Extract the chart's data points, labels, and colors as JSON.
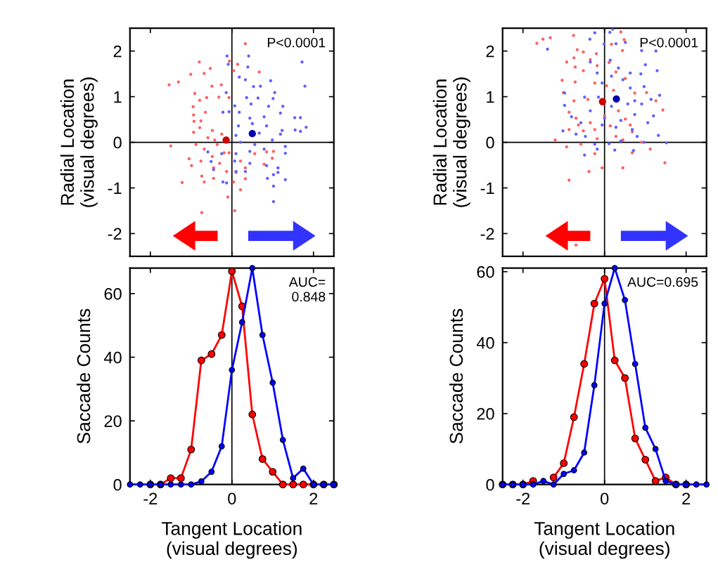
{
  "chart_data": [
    {
      "type": "scatter",
      "ylabel": "Radial Location\n(visual degrees)",
      "xlim": [
        -2.5,
        2.5
      ],
      "ylim": [
        -2.5,
        2.5
      ],
      "xticks": [
        {
          "value": -2,
          "label": null
        },
        {
          "value": 0,
          "label": null
        },
        {
          "value": 2,
          "label": null
        }
      ],
      "yticks": [
        -2,
        -1,
        0,
        1,
        2
      ],
      "tick_labels": "y",
      "annotations": [
        "P<0.0001"
      ],
      "ref_lines": [
        {
          "axis": "x",
          "value": 0,
          "color": "#000000"
        },
        {
          "axis": "y",
          "value": 0,
          "color": "#000000"
        }
      ],
      "series": [
        {
          "color": "#ff6060",
          "x": [
            0.33,
            -0.8,
            -1.31,
            -1.54,
            -1.01,
            -0.68,
            -0.53,
            -0.49,
            -0.91,
            -0.62,
            -0.32,
            -0.26,
            -0.07,
            -0.06,
            0.04,
            0.14,
            0.67,
            -0.79,
            -0.95,
            -0.65,
            -0.94,
            -0.76,
            -0.93,
            -0.79,
            -0.94,
            -0.48,
            -0.25,
            -0.59,
            -1.5,
            -0.88,
            -0.68,
            -0.36,
            -1.05,
            -0.99,
            -0.76,
            -0.48,
            -0.19,
            -0.3,
            -0.45,
            -0.13,
            0.21,
            0.56,
            0.85,
            1.02,
            0.99,
            0.79,
            0.33,
            0.1,
            0.33,
            0.21,
            0.04,
            -0.1,
            0.07,
            -0.74,
            -1.22,
            -0.68,
            -0.45,
            -0.74,
            -0.07,
            -0.42,
            -0.19
          ],
          "values": [
            2.16,
            1.76,
            1.32,
            1.26,
            1.49,
            1.51,
            1.62,
            1.23,
            1.07,
            0.98,
            0.99,
            1.26,
            0.98,
            1.78,
            1.57,
            1.71,
            1.54,
            0.92,
            0.78,
            0.66,
            0.6,
            0.47,
            0.46,
            0.32,
            0.22,
            0.26,
            0.18,
            0.1,
            -0.08,
            -0.05,
            -0.15,
            -0.05,
            -0.36,
            -0.51,
            -0.41,
            -0.31,
            -0.23,
            -0.46,
            -0.56,
            -0.64,
            -0.41,
            -0.25,
            -0.21,
            -0.2,
            -0.35,
            -0.48,
            -0.56,
            -0.66,
            -0.8,
            -1.04,
            -0.87,
            -1.2,
            -1.5,
            -1.54,
            -0.88,
            -0.87,
            -0.79,
            -0.74,
            -0.23,
            0.05,
            0.05
          ]
        },
        {
          "color": "#6060ff",
          "x": [
            -0.12,
            -0.09,
            0.41,
            0.39,
            0.33,
            0.18,
            1.72,
            1.79,
            0.95,
            0.7,
            0.53,
            1.05,
            0.36,
            0.64,
            1.01,
            1.25,
            0.9,
            0.47,
            0.07,
            -0.07,
            -0.22,
            -0.14,
            0.18,
            0.44,
            0.79,
            1.19,
            1.54,
            1.68,
            1.82,
            1.55,
            1.68,
            1.23,
            0.85,
            0.5,
            0.16,
            0.1,
            0.67,
            1.19,
            0.99,
            0.56,
            0.21,
            1.31,
            0.79,
            0.44,
            0.1,
            1.31,
            -0.59,
            -0.25,
            0.07,
            0.44,
            0.85,
            1.13,
            1.13,
            0.33,
            -0.45,
            -0.51,
            1.02,
            0.87,
            1.31,
            1.02,
            1.02,
            -0.22,
            -0.13,
            0.1
          ],
          "values": [
            1.89,
            1.71,
            1.89,
            1.65,
            1.37,
            1.43,
            1.76,
            1.23,
            1.35,
            1.23,
            1.22,
            1.09,
            0.98,
            0.97,
            0.96,
            0.79,
            0.79,
            0.84,
            0.8,
            0.67,
            0.66,
            1.09,
            0.66,
            0.53,
            0.56,
            0.64,
            0.54,
            0.54,
            0.33,
            0.27,
            0.24,
            0.26,
            0.36,
            0.41,
            0.36,
            0.15,
            0.2,
            0.18,
            0.05,
            -0.05,
            0.0,
            -0.09,
            -0.15,
            -0.2,
            -0.25,
            -0.24,
            -0.21,
            -0.25,
            -0.41,
            -0.46,
            -0.51,
            -0.56,
            -0.66,
            -0.64,
            -0.6,
            -0.42,
            -0.71,
            -0.79,
            -0.82,
            -0.96,
            -1.3,
            -0.87,
            -0.89,
            -0.64
          ]
        },
        {
          "type": "bubble",
          "color": "#cc0000",
          "x": [
            -0.14
          ],
          "values": [
            0.05
          ],
          "sizes": [
            1
          ]
        },
        {
          "type": "bubble",
          "color": "#0000b0",
          "x": [
            0.5
          ],
          "values": [
            0.19
          ],
          "sizes": [
            1
          ]
        }
      ]
    },
    {
      "type": "scatter",
      "ylabel": "Radial Location\n(visual degrees)",
      "xlim": [
        -2.5,
        2.5
      ],
      "ylim": [
        -2.5,
        2.5
      ],
      "xticks": [
        {
          "value": -2,
          "label": null
        },
        {
          "value": 0,
          "label": null
        },
        {
          "value": 2,
          "label": null
        }
      ],
      "yticks": [
        -2,
        -1,
        0,
        1,
        2
      ],
      "tick_labels": "y",
      "annotations": [
        "P<0.0001"
      ],
      "ref_lines": [
        {
          "axis": "x",
          "value": 0,
          "color": "#000000"
        },
        {
          "axis": "y",
          "value": 0,
          "color": "#000000"
        }
      ],
      "series": [
        {
          "color": "#ff6060",
          "x": [
            -1.66,
            -1.51,
            -1.33,
            -0.76,
            -0.67,
            -0.52,
            -0.2,
            0.17,
            0.4,
            0.48,
            0.44,
            -0.93,
            -0.75,
            -0.72,
            -1.04,
            -1.01,
            -0.72,
            -0.52,
            -0.35,
            -0.18,
            0.11,
            0.28,
            -0.24,
            0.05,
            0.22,
            0.51,
            0.74,
            1.03,
            1.26,
            -0.75,
            -0.41,
            -0.87,
            -0.7,
            -0.35,
            0.0,
            0.34,
            0.51,
            0.63,
            1.43,
            -0.87,
            -0.52,
            -0.24,
            -1.21,
            -0.93,
            -0.58,
            -0.18,
            0.28,
            0.45,
            0.68,
            0.91,
            1.12,
            1.48,
            0.45,
            -0.06,
            -0.38,
            -0.87,
            -0.7,
            -0.24,
            0.68,
            -0.64,
            0.14
          ],
          "values": [
            2.17,
            2.26,
            2.29,
            2.34,
            2.03,
            1.98,
            1.94,
            2.15,
            2.42,
            2.25,
            2.01,
            1.76,
            1.85,
            1.65,
            1.36,
            1.09,
            1.32,
            1.57,
            1.81,
            1.68,
            1.75,
            1.54,
            1.3,
            1.24,
            1.14,
            1.4,
            1.08,
            1.09,
            0.91,
            0.91,
            0.94,
            0.66,
            0.53,
            0.43,
            0.58,
            0.69,
            0.51,
            0.38,
            0.71,
            0.28,
            0.25,
            0.28,
            0.05,
            -0.1,
            -0.04,
            0.08,
            0.13,
            0.05,
            -0.23,
            0.0,
            -0.15,
            -0.45,
            -0.56,
            -0.56,
            -0.64,
            -0.83,
            -2.25,
            -0.25,
            0.23,
            0.38,
            0.36
          ]
        },
        {
          "color": "#6060ff",
          "x": [
            -1.4,
            -0.24,
            0.13,
            0.2,
            -0.36,
            -0.01,
            0.28,
            0.51,
            0.91,
            1.26,
            1.0,
            1.29,
            0.63,
            0.89,
            -0.35,
            -0.18,
            0.14,
            0.34,
            -0.06,
            0.17,
            0.45,
            0.63,
            0.97,
            1.35,
            1.14,
            0.91,
            0.57,
            0.17,
            -0.15,
            -0.49,
            -0.98,
            -0.98,
            -0.81,
            -0.35,
            0.0,
            0.4,
            0.74,
            1.2,
            1.06,
            0.68,
            0.28,
            -0.06,
            -0.58,
            -1.02,
            -0.47,
            -0.24,
            0.11,
            0.4,
            0.8,
            0.97,
            1.32,
            1.52,
            -0.49,
            -0.18,
            0.25,
            0.71,
            -0.7,
            0.74
          ],
          "values": [
            2.04,
            2.4,
            2.41,
            2.48,
            2.26,
            2.15,
            2.16,
            2.19,
            2.01,
            2.0,
            1.7,
            1.57,
            1.52,
            1.5,
            1.76,
            1.52,
            1.8,
            1.63,
            1.3,
            1.45,
            1.37,
            1.19,
            1.22,
            1.03,
            0.94,
            0.84,
            0.84,
            0.79,
            0.99,
            0.99,
            1.08,
            0.81,
            0.56,
            0.69,
            0.53,
            0.48,
            0.61,
            0.58,
            0.43,
            0.28,
            0.33,
            0.38,
            0.43,
            0.25,
            0.13,
            -0.04,
            -0.03,
            0.03,
            0.13,
            0.0,
            0.15,
            -0.01,
            -0.28,
            -0.15,
            -0.17,
            -0.18,
            0.18,
            0.91
          ]
        },
        {
          "type": "bubble",
          "color": "#cc0000",
          "x": [
            -0.05
          ],
          "values": [
            0.89
          ],
          "sizes": [
            1
          ]
        },
        {
          "type": "bubble",
          "color": "#0000b0",
          "x": [
            0.29
          ],
          "values": [
            0.95
          ],
          "sizes": [
            1
          ]
        }
      ]
    },
    {
      "type": "line",
      "ylabel": "Saccade Counts",
      "xlabel": "Tangent Location\n(visual degrees)",
      "xlim": [
        -2.5,
        2.5
      ],
      "ylim": [
        0,
        68
      ],
      "xticks": [
        -2,
        0,
        2
      ],
      "yticks": [
        0,
        20,
        40,
        60
      ],
      "marker": "circle",
      "annotations": [
        "AUC=\n0.848"
      ],
      "ref_lines": [
        {
          "axis": "x",
          "value": 0,
          "color": "#000000"
        }
      ],
      "x": [
        -2.5,
        -2.25,
        -2,
        -1.75,
        -1.5,
        -1.25,
        -1,
        -0.75,
        -0.5,
        -0.25,
        0,
        0.25,
        0.5,
        0.75,
        1,
        1.25,
        1.5,
        1.75,
        2,
        2.25,
        2.5
      ],
      "series": [
        {
          "color": "#ff0000",
          "values": [
            null,
            null,
            0,
            0,
            2,
            2,
            11,
            39,
            41,
            47,
            67,
            56,
            22,
            8,
            4,
            0,
            0,
            0,
            0,
            0,
            0
          ]
        },
        {
          "color": "#0000ff",
          "values": [
            0,
            0,
            0,
            0,
            0,
            0,
            0,
            1,
            4,
            12,
            36,
            51,
            68,
            47,
            32,
            14,
            2,
            5,
            0,
            0,
            0
          ]
        }
      ]
    },
    {
      "type": "line",
      "ylabel": "Saccade Counts",
      "xlabel": "Tangent Location\n(visual degrees)",
      "xlim": [
        -2.5,
        2.5
      ],
      "ylim": [
        0,
        61
      ],
      "xticks": [
        -2,
        0,
        2
      ],
      "yticks": [
        0,
        20,
        40,
        60
      ],
      "marker": "circle",
      "annotations": [
        "AUC=0.695"
      ],
      "ref_lines": [
        {
          "axis": "x",
          "value": 0,
          "color": "#000000"
        }
      ],
      "x": [
        -2.5,
        -2.25,
        -2,
        -1.75,
        -1.5,
        -1.25,
        -1,
        -0.75,
        -0.5,
        -0.25,
        0,
        0.25,
        0.5,
        0.75,
        1,
        1.25,
        1.5,
        1.75,
        2,
        2.25,
        2.5
      ],
      "series": [
        {
          "color": "#ff0000",
          "values": [
            0,
            0,
            0,
            1,
            null,
            2,
            6,
            19,
            34,
            51,
            58,
            35,
            30,
            13,
            7,
            1,
            2,
            0,
            0,
            null,
            null
          ]
        },
        {
          "color": "#0000ff",
          "values": [
            0,
            0,
            0,
            0,
            1,
            0,
            3,
            4,
            9,
            28,
            51,
            61,
            52,
            34,
            16,
            10,
            1,
            0,
            0,
            0,
            0
          ]
        }
      ]
    }
  ]
}
